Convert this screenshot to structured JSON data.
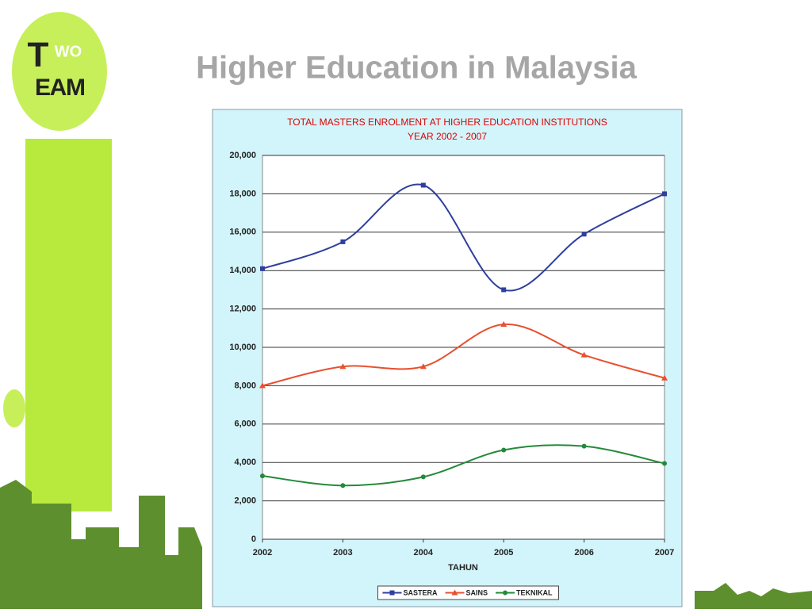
{
  "header": {
    "title": "Higher Education in Malaysia"
  },
  "logo": {
    "big": "T",
    "small": "WO",
    "bottom": "EAM"
  },
  "chart_data": {
    "type": "line",
    "title": "TOTAL MASTERS ENROLMENT AT HIGHER EDUCATION INSTITUTIONS",
    "subtitle": "YEAR 2002 - 2007",
    "x_label": "TAHUN",
    "x": [
      2002,
      2003,
      2004,
      2005,
      2006,
      2007
    ],
    "xlim": [
      2002,
      2007
    ],
    "xticks": [
      2002,
      2003,
      2004,
      2005,
      2006,
      2007
    ],
    "ylim": [
      0,
      20000
    ],
    "yticks": [
      0,
      {
        "value": 2000,
        "label": "2,000"
      },
      {
        "value": 4000,
        "label": "4,000"
      },
      {
        "value": 6000,
        "label": "6,000"
      },
      {
        "value": 8000,
        "label": "8,000"
      },
      {
        "value": 10000,
        "label": "10,000"
      },
      {
        "value": 12000,
        "label": "12,000"
      },
      {
        "value": 14000,
        "label": "14,000"
      },
      {
        "value": 16000,
        "label": "16,000"
      },
      {
        "value": 18000,
        "label": "18,000"
      },
      {
        "value": 20000,
        "label": "20,000"
      }
    ],
    "grid": true,
    "smooth": true,
    "legend": "bottom",
    "series": [
      {
        "name": "SASTERA",
        "color": "#2e3f9e",
        "marker": "square",
        "values": [
          14100,
          15500,
          18450,
          13000,
          15900,
          18000
        ]
      },
      {
        "name": "SAINS",
        "color": "#e8502f",
        "marker": "triangle",
        "values": [
          8000,
          9000,
          9000,
          11200,
          9600,
          8400
        ]
      },
      {
        "name": "TEKNIKAL",
        "color": "#238a3a",
        "marker": "circle",
        "values": [
          3300,
          2800,
          3250,
          4650,
          4850,
          3950
        ]
      }
    ]
  }
}
